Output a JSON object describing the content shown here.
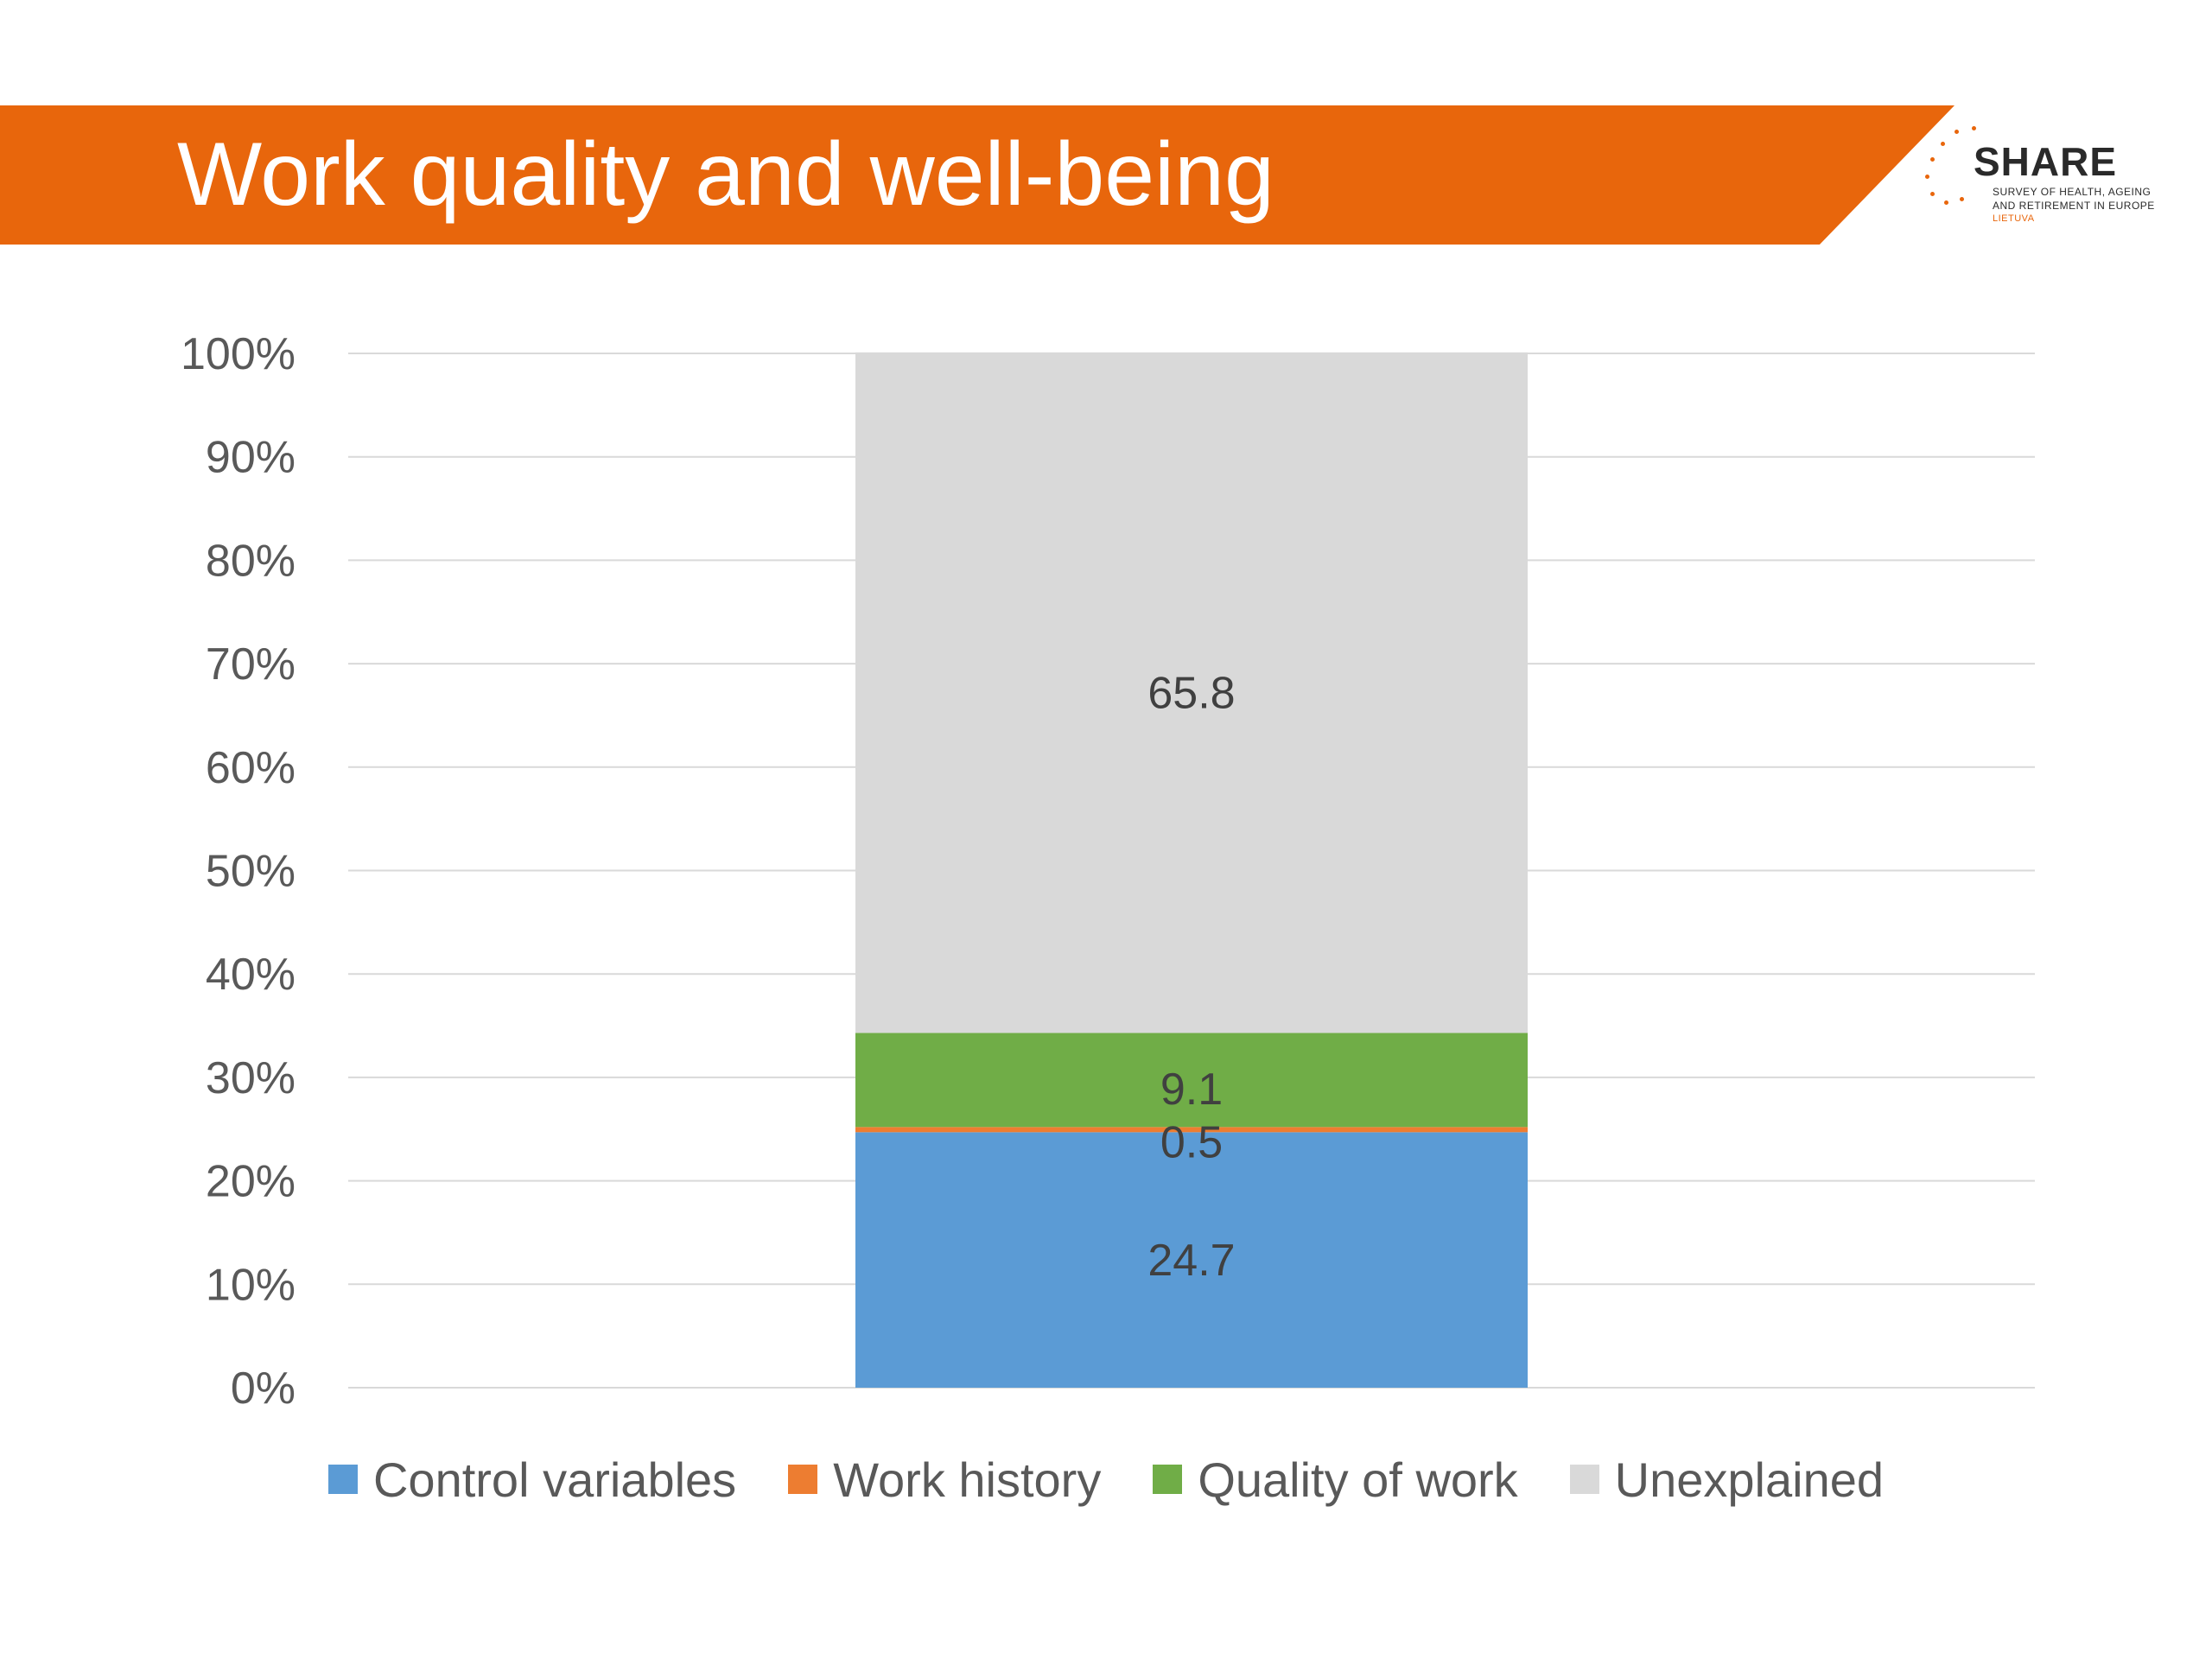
{
  "header": {
    "title": "Work quality and well-being",
    "logo": {
      "brand": "SHARE",
      "line1": "SURVEY OF HEALTH, AGEING",
      "line2": "AND RETIREMENT IN EUROPE",
      "region": "LIETUVA"
    }
  },
  "colors": {
    "banner": "#e8660c",
    "control_variables": "#5b9bd5",
    "work_history": "#ed7d31",
    "quality_of_work": "#70ad47",
    "unexplained": "#d9d9d9"
  },
  "chart_data": {
    "type": "bar",
    "stacked": true,
    "categories": [
      ""
    ],
    "ylim": [
      0,
      100
    ],
    "yticks": [
      "0%",
      "10%",
      "20%",
      "30%",
      "40%",
      "50%",
      "60%",
      "70%",
      "80%",
      "90%",
      "100%"
    ],
    "grid": true,
    "legend_position": "bottom",
    "series": [
      {
        "name": "Control variables",
        "values": [
          24.7
        ],
        "color": "#5b9bd5",
        "label": "24.7"
      },
      {
        "name": "Work history",
        "values": [
          0.5
        ],
        "color": "#ed7d31",
        "label": "0.5"
      },
      {
        "name": "Quality of work",
        "values": [
          9.1
        ],
        "color": "#70ad47",
        "label": "9.1"
      },
      {
        "name": "Unexplained",
        "values": [
          65.8
        ],
        "color": "#d9d9d9",
        "label": "65.8"
      }
    ]
  }
}
